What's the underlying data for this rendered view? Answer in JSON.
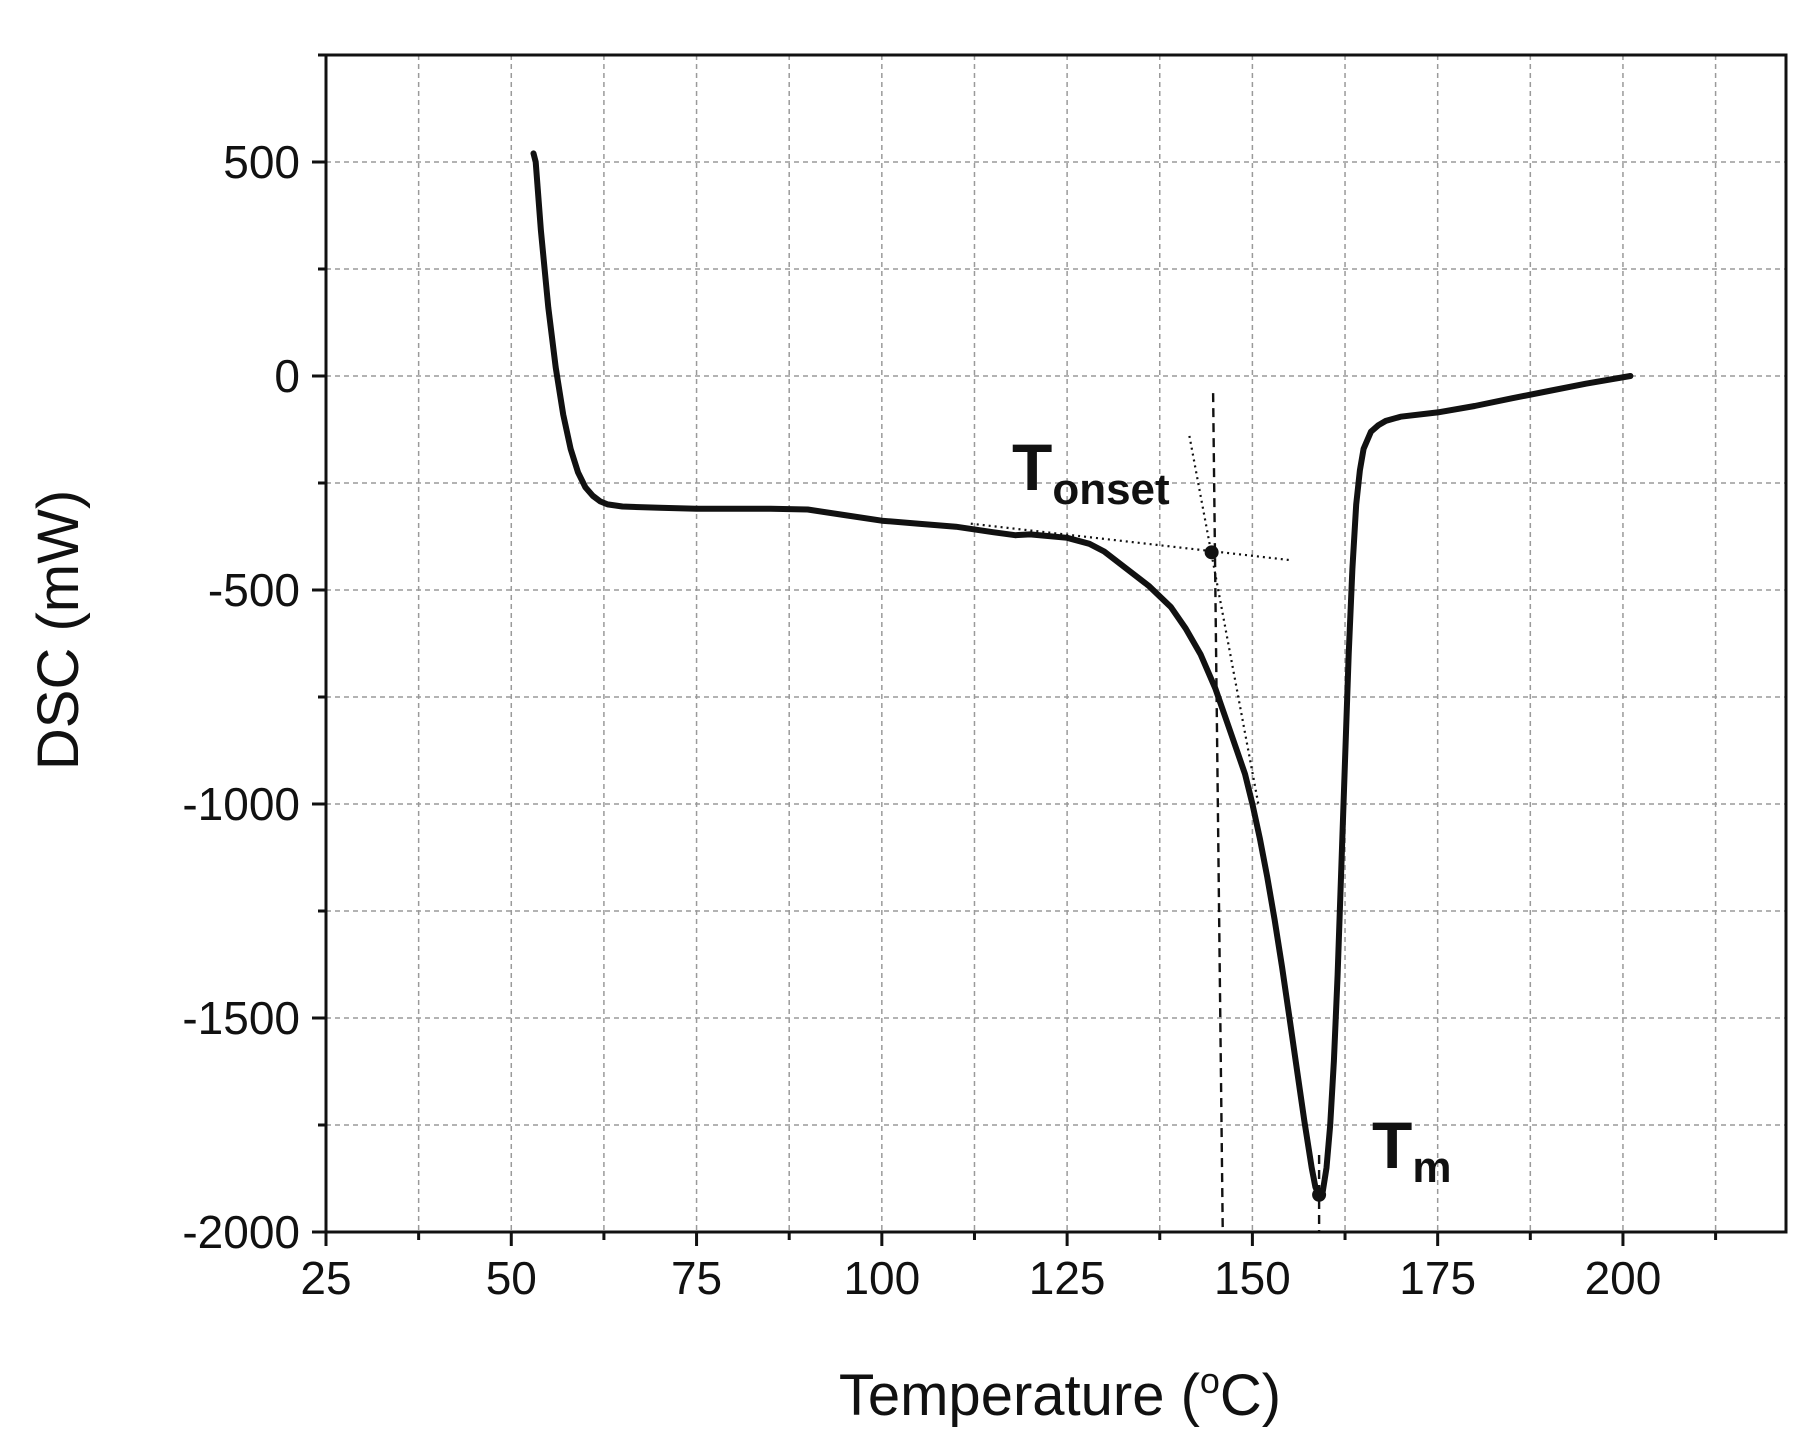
{
  "chart_data": {
    "type": "line",
    "xlabel": "Temperature (",
    "xlabel_sup": "o",
    "xlabel_tail": "C)",
    "ylabel": "DSC (mW)",
    "xlim": [
      25,
      222
    ],
    "ylim": [
      -2000,
      750
    ],
    "xticks": [
      25,
      50,
      75,
      100,
      125,
      150,
      175,
      200
    ],
    "xtick_labels": [
      "25",
      "50",
      "75",
      "100",
      "125",
      "150",
      "175",
      "200"
    ],
    "yticks": [
      -2000,
      -1500,
      -1000,
      -500,
      0,
      500
    ],
    "ytick_labels": [
      "-2000",
      "-1500",
      "-1000",
      "-500",
      "0",
      "500"
    ],
    "grid": true,
    "series": [
      {
        "name": "DSC",
        "color": "#111111",
        "x": [
          53,
          53.3,
          54,
          55,
          56,
          57,
          58,
          59,
          60,
          61,
          62,
          63,
          65,
          70,
          75,
          80,
          85,
          90,
          95,
          100,
          105,
          110,
          115,
          118,
          120,
          125,
          128,
          130,
          133,
          136,
          139,
          141,
          143,
          145,
          147,
          149,
          150,
          151,
          152,
          153,
          154,
          155,
          156,
          157,
          158,
          158.5,
          159,
          159.5,
          160,
          160.5,
          161,
          161.5,
          162,
          162.5,
          163,
          163.5,
          164,
          164.5,
          165,
          166,
          167,
          168,
          170,
          175,
          180,
          185,
          190,
          195,
          201
        ],
        "y": [
          520,
          500,
          340,
          160,
          20,
          -90,
          -170,
          -225,
          -260,
          -280,
          -293,
          -300,
          -305,
          -308,
          -310,
          -310,
          -310,
          -312,
          -325,
          -338,
          -345,
          -352,
          -365,
          -372,
          -370,
          -378,
          -392,
          -410,
          -450,
          -490,
          -540,
          -590,
          -650,
          -730,
          -830,
          -930,
          -1000,
          -1080,
          -1170,
          -1270,
          -1380,
          -1500,
          -1620,
          -1740,
          -1850,
          -1895,
          -1915,
          -1905,
          -1850,
          -1750,
          -1600,
          -1400,
          -1150,
          -900,
          -650,
          -450,
          -300,
          -220,
          -170,
          -130,
          -115,
          -105,
          -95,
          -85,
          -70,
          -52,
          -35,
          -18,
          0
        ]
      }
    ],
    "tangents": [
      {
        "name": "baseline tangent",
        "x": [
          112,
          155
        ],
        "y": [
          -345,
          -430
        ]
      },
      {
        "name": "leading-edge tangent",
        "x": [
          141.5,
          150.8
        ],
        "y": [
          -140,
          -1000
        ]
      }
    ],
    "markers": [
      {
        "name": "onset point",
        "x": 144.5,
        "y": -412
      },
      {
        "name": "peak point",
        "x": 159,
        "y": -1913
      }
    ],
    "vertical_guides": [
      {
        "name": "onset guide",
        "x": [
          144.7,
          146
        ],
        "y": [
          -40,
          -2000
        ]
      },
      {
        "name": "peak guide",
        "x": [
          159,
          159
        ],
        "y": [
          -1820,
          -2000
        ]
      }
    ],
    "annotations": [
      {
        "name": "onset",
        "main": "T",
        "sub": "onset",
        "x": 135,
        "y": -300
      },
      {
        "name": "melting",
        "main": "T",
        "sub": "m",
        "x": 167,
        "y": -1800
      }
    ]
  }
}
